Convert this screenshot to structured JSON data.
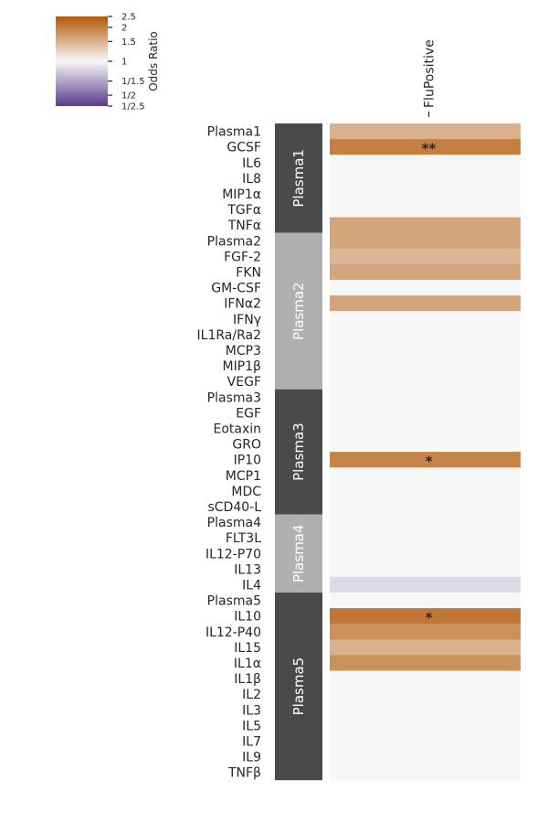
{
  "chart_data": {
    "type": "heatmap",
    "columns": [
      "FluPositive"
    ],
    "colorbar": {
      "title": "Odds Ratio",
      "ticks": [
        "2.5",
        "2",
        "1.5",
        "1",
        "1/1.5",
        "1/2",
        "1/2.5"
      ],
      "tick_values": [
        2.5,
        2,
        1.5,
        1,
        0.6667,
        0.5,
        0.4
      ],
      "range": [
        0.4,
        2.5
      ],
      "low_color": "#5b3a8e",
      "mid_color": "#f7f7f7",
      "high_color": "#b35806"
    },
    "modules": [
      {
        "name": "Plasma1",
        "rows": [
          "Plasma1",
          "GCSF",
          "IL6",
          "IL8",
          "MIP1α",
          "TGFα",
          "TNFα"
        ],
        "shade": "#4a4a4a"
      },
      {
        "name": "Plasma2",
        "rows": [
          "Plasma2",
          "FGF-2",
          "FKN",
          "GM-CSF",
          "IFNα2",
          "IFNγ",
          "IL1Ra/Ra2",
          "MCP3",
          "MIP1β",
          "VEGF"
        ],
        "shade": "#b0b0b0"
      },
      {
        "name": "Plasma3",
        "rows": [
          "Plasma3",
          "EGF",
          "Eotaxin",
          "GRO",
          "IP10",
          "MCP1",
          "MDC",
          "sCD40-L"
        ],
        "shade": "#4a4a4a"
      },
      {
        "name": "Plasma4",
        "rows": [
          "Plasma4",
          "FLT3L",
          "IL12-P70",
          "IL13",
          "IL4"
        ],
        "shade": "#b0b0b0"
      },
      {
        "name": "Plasma5",
        "rows": [
          "Plasma5",
          "IL10",
          "IL12-P40",
          "IL15",
          "IL1α",
          "IL1β",
          "IL2",
          "IL3",
          "IL5",
          "IL7",
          "IL9",
          "TNFβ"
        ],
        "shade": "#4a4a4a"
      }
    ],
    "values": [
      1.5,
      2.0,
      1,
      1,
      1,
      1,
      1.6,
      1.6,
      1.45,
      1.6,
      1,
      1.6,
      1,
      1,
      1,
      1,
      1,
      1,
      1,
      1,
      1,
      1.95,
      1,
      1,
      1,
      1,
      1,
      1,
      1,
      0.87,
      1,
      2.1,
      1.8,
      1.5,
      1.8,
      1,
      1,
      1,
      1,
      1,
      1,
      1
    ],
    "annotations": [
      "",
      "**",
      "",
      "",
      "",
      "",
      "",
      "",
      "",
      "",
      "",
      "",
      "",
      "",
      "",
      "",
      "",
      "",
      "",
      "",
      "",
      "*",
      "",
      "",
      "",
      "",
      "",
      "",
      "",
      "",
      "",
      "*",
      "",
      "",
      "",
      "",
      "",
      "",
      "",
      "",
      "",
      ""
    ]
  }
}
